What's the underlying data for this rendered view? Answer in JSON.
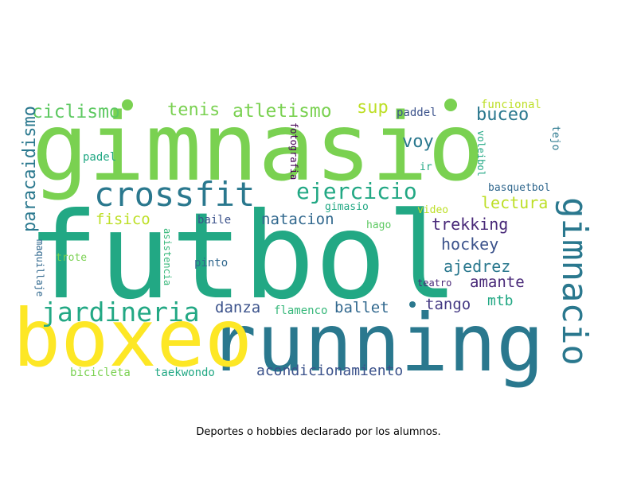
{
  "caption": "Deportes o hobbies declarado por los alumnos.",
  "words": [
    {
      "text": "gimnasio",
      "color": "#7ad151"
    },
    {
      "text": "futbol",
      "color": "#22a884"
    },
    {
      "text": "running",
      "color": "#2a788e"
    },
    {
      "text": "boxeo",
      "color": "#fde725"
    },
    {
      "text": "crossfit",
      "color": "#2a788e"
    },
    {
      "text": "gimnacio",
      "color": "#2a788e"
    },
    {
      "text": "jardineria",
      "color": "#22a884"
    },
    {
      "text": "ejercicio",
      "color": "#22a884"
    },
    {
      "text": "ciclismo",
      "color": "#5ec962"
    },
    {
      "text": "atletismo",
      "color": "#7ad151"
    },
    {
      "text": "tenis",
      "color": "#7ad151"
    },
    {
      "text": "sup",
      "color": "#bddf26"
    },
    {
      "text": "buceo",
      "color": "#2a788e"
    },
    {
      "text": "voy",
      "color": "#2a788e"
    },
    {
      "text": "paracaidismo",
      "color": "#2a788e"
    },
    {
      "text": "lectura",
      "color": "#bddf26"
    },
    {
      "text": "trekking",
      "color": "#482878"
    },
    {
      "text": "hockey",
      "color": "#3b528b"
    },
    {
      "text": "ajedrez",
      "color": "#2a788e"
    },
    {
      "text": "amante",
      "color": "#482878"
    },
    {
      "text": "natacion",
      "color": "#31688e"
    },
    {
      "text": "fisico",
      "color": "#bddf26"
    },
    {
      "text": "danza",
      "color": "#3b528b"
    },
    {
      "text": "ballet",
      "color": "#31688e"
    },
    {
      "text": "tango",
      "color": "#443983"
    },
    {
      "text": "mtb",
      "color": "#22a884"
    },
    {
      "text": "acondicionamiento",
      "color": "#3b528b"
    },
    {
      "text": "taekwondo",
      "color": "#22a884"
    },
    {
      "text": "bicicleta",
      "color": "#7ad151"
    },
    {
      "text": "flamenco",
      "color": "#35b779"
    },
    {
      "text": "paddel",
      "color": "#3b528b"
    },
    {
      "text": "padel",
      "color": "#22a884"
    },
    {
      "text": "funcional",
      "color": "#bddf26"
    },
    {
      "text": "tejo",
      "color": "#2a788e"
    },
    {
      "text": "voleibol",
      "color": "#22a884"
    },
    {
      "text": "basquetbol",
      "color": "#31688e"
    },
    {
      "text": "ir",
      "color": "#22a884"
    },
    {
      "text": "fotografia",
      "color": "#440154"
    },
    {
      "text": "gimasio",
      "color": "#22a884"
    },
    {
      "text": "video",
      "color": "#bddf26"
    },
    {
      "text": "hago",
      "color": "#5ec962"
    },
    {
      "text": "baile",
      "color": "#3b528b"
    },
    {
      "text": "pinto",
      "color": "#31688e"
    },
    {
      "text": "asistencia",
      "color": "#35b779"
    },
    {
      "text": "trote",
      "color": "#7ad151"
    },
    {
      "text": "maquillaje",
      "color": "#31688e"
    },
    {
      "text": "teatro",
      "color": "#482878"
    },
    {
      "text": "dot",
      "color": "#7ad151"
    }
  ]
}
